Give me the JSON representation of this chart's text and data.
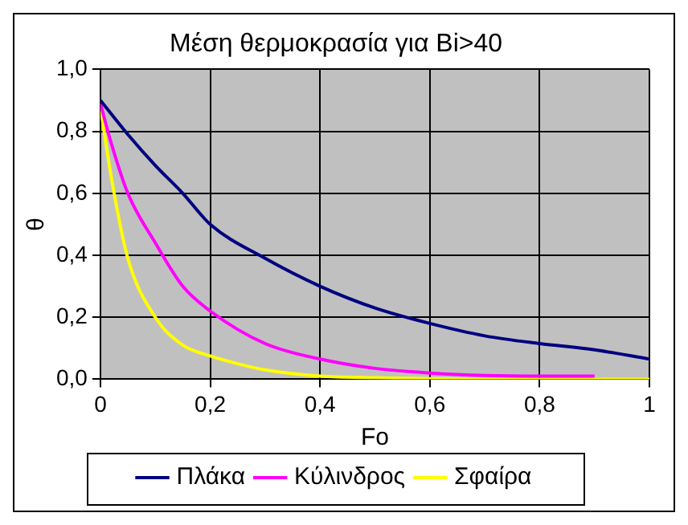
{
  "chart_data": {
    "type": "line",
    "title": "Μέση θερμοκρασία για Bi>40",
    "xlabel": "Fo",
    "ylabel": "θ",
    "xlim": [
      0,
      1
    ],
    "ylim": [
      0,
      1
    ],
    "xticks": [
      0,
      {
        "value": 0.2,
        "label": "0,2"
      },
      {
        "value": 0.4,
        "label": "0,4"
      },
      {
        "value": 0.6,
        "label": "0,6"
      },
      {
        "value": 0.8,
        "label": "0,8"
      },
      1
    ],
    "yticks": [
      {
        "value": 0,
        "label": "0,0"
      },
      {
        "value": 0.2,
        "label": "0,2"
      },
      {
        "value": 0.4,
        "label": "0,4"
      },
      {
        "value": 0.6,
        "label": "0,6"
      },
      {
        "value": 0.8,
        "label": "0,8"
      },
      {
        "value": 1,
        "label": "1,0"
      }
    ],
    "grid": true,
    "legend": "bottom",
    "marker": "none",
    "line_style": "solid",
    "series": [
      {
        "name": "Πλάκα",
        "color": "#000080",
        "x": [
          0,
          0.05,
          0.1,
          0.15,
          0.2,
          0.3,
          0.4,
          0.5,
          0.6,
          0.7,
          0.8,
          0.9,
          1
        ],
        "values": [
          0.9,
          0.79,
          0.69,
          0.6,
          0.5,
          0.39,
          0.3,
          0.23,
          0.18,
          0.14,
          0.115,
          0.095,
          0.065
        ]
      },
      {
        "name": "Κύλινδρος",
        "color": "#ff00ff",
        "x": [
          0,
          0.02,
          0.05,
          0.1,
          0.15,
          0.2,
          0.3,
          0.4,
          0.5,
          0.6,
          0.7,
          0.8,
          0.9
        ],
        "values": [
          0.89,
          0.76,
          0.6,
          0.44,
          0.3,
          0.22,
          0.115,
          0.065,
          0.035,
          0.02,
          0.012,
          0.01,
          0.01
        ]
      },
      {
        "name": "Σφαίρα",
        "color": "#ffff00",
        "x": [
          0,
          0.02,
          0.05,
          0.1,
          0.15,
          0.2,
          0.25,
          0.3,
          0.4,
          0.5,
          0.7,
          1
        ],
        "values": [
          0.88,
          0.65,
          0.39,
          0.2,
          0.11,
          0.075,
          0.05,
          0.03,
          0.01,
          0.005,
          0,
          0
        ]
      }
    ]
  }
}
